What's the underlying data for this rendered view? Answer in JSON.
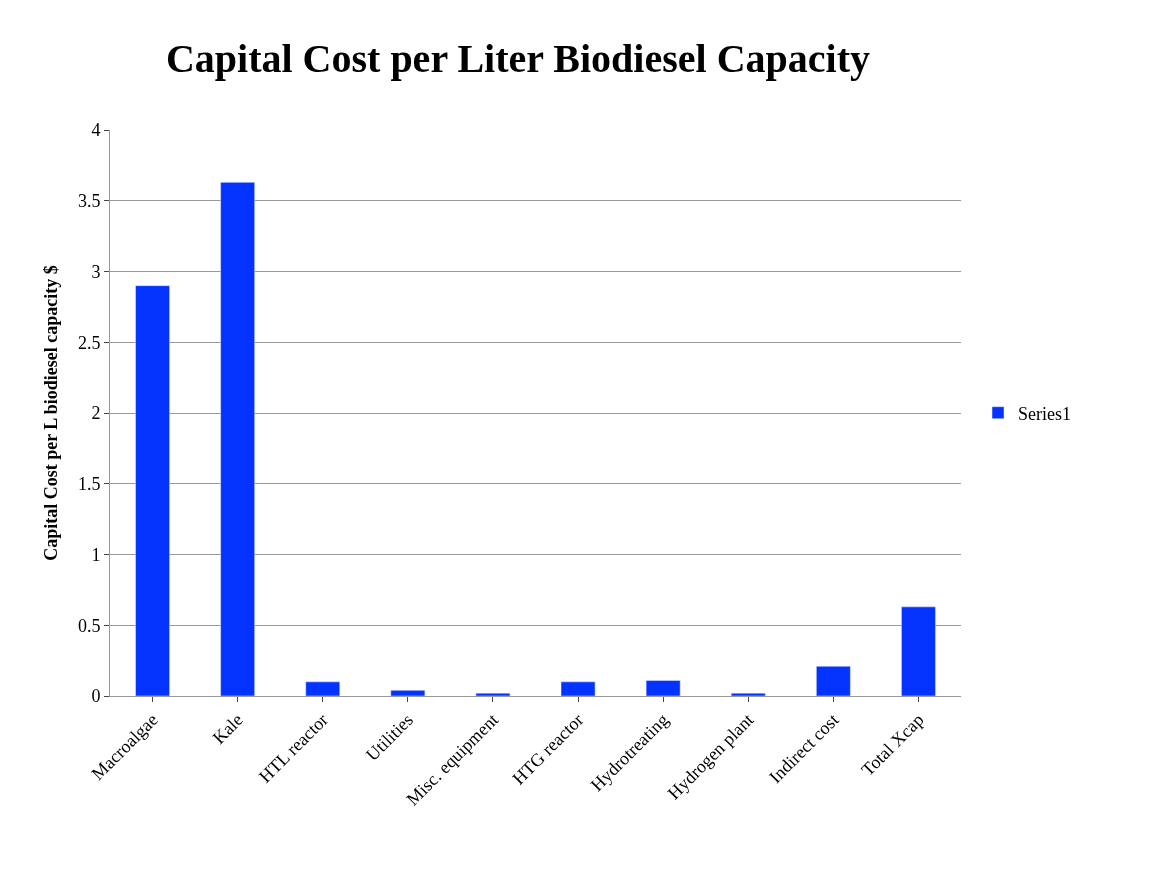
{
  "chart_data": {
    "type": "bar",
    "title": "Capital Cost per Liter Biodiesel Capacity",
    "ylabel": "Capital Cost per L biodiesel capacity $",
    "categories": [
      "Macroalgae",
      "Kale",
      "HTL reactor",
      "Utilities",
      "Misc. equipment",
      "HTG reactor",
      "Hydrotreating",
      "Hydrogen plant",
      "Indirect cost",
      "Total Xcap"
    ],
    "series": [
      {
        "name": "Series1",
        "color": "#0433ff",
        "values": [
          2.9,
          3.63,
          0.1,
          0.04,
          0.02,
          0.1,
          0.11,
          0.02,
          0.21,
          0.63
        ]
      }
    ],
    "ylim": [
      0,
      4
    ],
    "yticks": [
      0,
      0.5,
      1,
      1.5,
      2,
      2.5,
      3,
      3.5,
      4
    ],
    "grid": "y",
    "legend": "right"
  }
}
